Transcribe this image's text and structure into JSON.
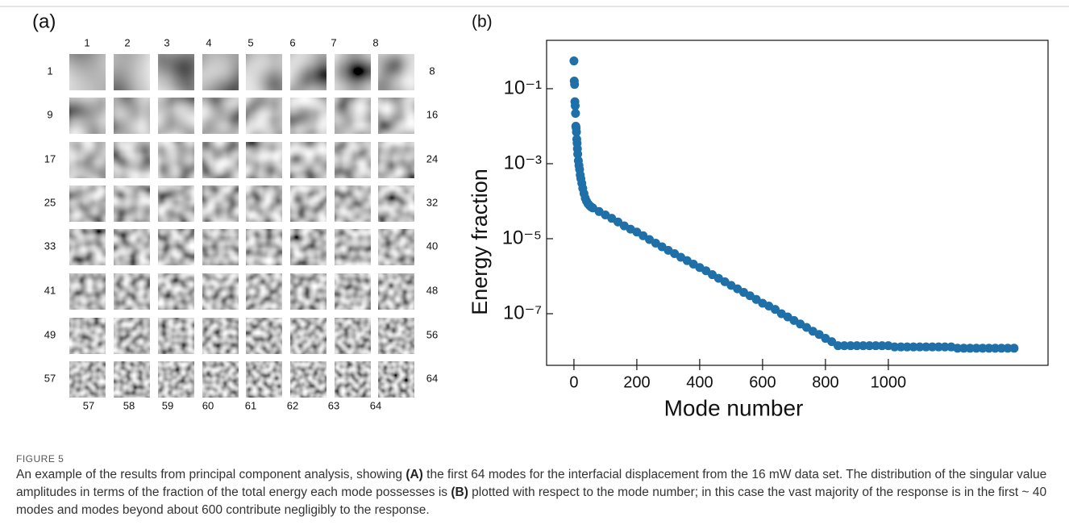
{
  "panel_a": {
    "label": "(a)",
    "top_labels": [
      "1",
      "2",
      "3",
      "4",
      "5",
      "6",
      "7",
      "8"
    ],
    "left_labels": [
      "1",
      "9",
      "17",
      "25",
      "33",
      "41",
      "49",
      "57"
    ],
    "right_labels": [
      "8",
      "16",
      "24",
      "32",
      "40",
      "48",
      "56",
      "64"
    ],
    "bottom_labels": [
      "57",
      "58",
      "59",
      "60",
      "61",
      "62",
      "63",
      "64"
    ]
  },
  "chart_data": {
    "type": "scatter",
    "label": "(b)",
    "y_label": "Energy fraction",
    "x_label": "Mode number",
    "color": "#1f6fa8",
    "log_y": true,
    "x": [
      0,
      1,
      2,
      3,
      4,
      5,
      6,
      7,
      8,
      9,
      10,
      11,
      12,
      14,
      16,
      18,
      20,
      22,
      25,
      28,
      32,
      36,
      40,
      45,
      50,
      55,
      60,
      80,
      100,
      120,
      140,
      160,
      180,
      200,
      220,
      240,
      260,
      280,
      300,
      320,
      340,
      360,
      380,
      400,
      420,
      440,
      460,
      480,
      500,
      520,
      540,
      560,
      580,
      600,
      620,
      640,
      660,
      680,
      700,
      720,
      740,
      760,
      780,
      800,
      820,
      840,
      860,
      880,
      900,
      920,
      940,
      960,
      980,
      1000,
      1020,
      1040,
      1060,
      1080,
      1100,
      1120,
      1140,
      1160,
      1180,
      1200,
      1220,
      1240,
      1260,
      1280,
      1300,
      1320,
      1340,
      1360,
      1380,
      1400
    ],
    "values": [
      0.55,
      0.16,
      0.13,
      0.045,
      0.035,
      0.022,
      0.01,
      0.009,
      0.007,
      0.0045,
      0.0035,
      0.0025,
      0.0018,
      0.0012,
      0.0009,
      0.0007,
      0.0005,
      0.0004,
      0.0003,
      0.00022,
      0.00016,
      0.00012,
      0.0001,
      8.5e-05,
      7.6e-05,
      7e-05,
      6.6e-05,
      5.3e-05,
      4.3e-05,
      3.5e-05,
      2.8e-05,
      2.2e-05,
      1.8e-05,
      1.5e-05,
      1.2e-05,
      9.5e-06,
      7.6e-06,
      6.1e-06,
      4.9e-06,
      4e-06,
      3.2e-06,
      2.6e-06,
      2.1e-06,
      1.7e-06,
      1.4e-06,
      1.1e-06,
      8.8e-07,
      7.1e-07,
      5.7e-07,
      4.6e-07,
      3.7e-07,
      3e-07,
      2.4e-07,
      1.9e-07,
      1.6e-07,
      1.3e-07,
      1e-07,
      8.2e-08,
      6.6e-08,
      5.3e-08,
      4.3e-08,
      3.4e-08,
      2.8e-08,
      2.2e-08,
      1.8e-08,
      1.4e-08,
      1.4e-08,
      1.4e-08,
      1.4e-08,
      1.4e-08,
      1.4e-08,
      1.4e-08,
      1.4e-08,
      1.4e-08,
      1.3e-08,
      1.3e-08,
      1.3e-08,
      1.3e-08,
      1.3e-08,
      1.3e-08,
      1.3e-08,
      1.3e-08,
      1.3e-08,
      1.3e-08,
      1.2e-08,
      1.2e-08,
      1.2e-08,
      1.2e-08,
      1.2e-08,
      1.2e-08,
      1.2e-08,
      1.2e-08,
      1.2e-08,
      1.2e-08
    ],
    "xlim": [
      -87,
      1508
    ],
    "ylim": [
      4.2e-09,
      1.95
    ],
    "xticks": [
      0,
      200,
      400,
      600,
      800,
      1000
    ],
    "yticks": [
      {
        "value": 0.1,
        "label": "10⁻¹"
      },
      {
        "value": 0.001,
        "label": "10⁻³"
      },
      {
        "value": 1e-05,
        "label": "10⁻⁵"
      },
      {
        "value": 1e-07,
        "label": "10⁻⁷"
      }
    ]
  },
  "caption": {
    "label": "FIGURE 5",
    "parts": [
      "An example of the results from principal component analysis, showing ",
      "(A)",
      " the first 64 modes for the interfacial displacement from the 16 mW data set. The distribution of the singular value amplitudes in terms of the fraction of the total energy each mode possesses is ",
      "(B)",
      " plotted with respect to the mode number; in this case the vast majority of the response is in the first ~ 40 modes and modes beyond about 600 contribute negligibly to the response."
    ]
  }
}
